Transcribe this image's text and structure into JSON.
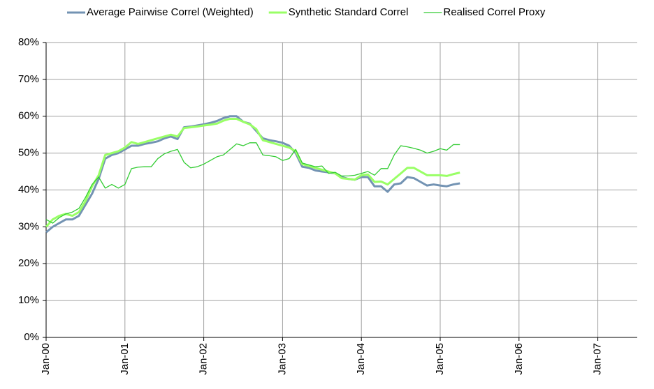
{
  "chart_data": {
    "type": "line",
    "x": [
      "2000-01",
      "2000-02",
      "2000-03",
      "2000-04",
      "2000-05",
      "2000-06",
      "2000-07",
      "2000-08",
      "2000-09",
      "2000-10",
      "2000-11",
      "2000-12",
      "2001-01",
      "2001-02",
      "2001-03",
      "2001-04",
      "2001-05",
      "2001-06",
      "2001-07",
      "2001-08",
      "2001-09",
      "2001-10",
      "2001-11",
      "2001-12",
      "2002-01",
      "2002-02",
      "2002-03",
      "2002-04",
      "2002-05",
      "2002-06",
      "2002-07",
      "2002-08",
      "2002-09",
      "2002-10",
      "2002-11",
      "2002-12",
      "2003-01",
      "2003-02",
      "2003-03",
      "2003-04",
      "2003-05",
      "2003-06",
      "2003-07",
      "2003-08",
      "2003-09",
      "2003-10",
      "2003-11",
      "2003-12",
      "2004-01",
      "2004-02",
      "2004-03",
      "2004-04",
      "2004-05",
      "2004-06",
      "2004-07",
      "2004-08",
      "2004-09",
      "2004-10",
      "2004-11",
      "2004-12",
      "2005-01",
      "2005-02",
      "2005-03",
      "2005-04"
    ],
    "series": [
      {
        "name": "Average Pairwise Correl (Weighted)",
        "color": "#7393b3",
        "width": 3,
        "values": [
          28.5,
          30,
          31,
          32,
          32,
          33,
          36,
          39,
          43,
          48.5,
          49.5,
          50,
          51,
          52,
          52,
          52.5,
          52.8,
          53.2,
          54,
          54.5,
          53.8,
          57,
          57.2,
          57.5,
          57.8,
          58.2,
          58.7,
          59.5,
          60,
          60,
          58.5,
          58,
          56,
          54,
          53.5,
          53.2,
          52.8,
          52,
          50,
          46.3,
          46,
          45.3,
          45,
          44.8,
          44.5,
          43.5,
          43,
          42.8,
          43.5,
          43.5,
          41,
          41,
          39.5,
          41.5,
          41.8,
          43.5,
          43.2,
          42.2,
          41.2,
          41.5,
          41.2,
          41,
          41.5,
          41.8
        ]
      },
      {
        "name": "Synthetic Standard Correl",
        "color": "#99ff66",
        "width": 3,
        "values": [
          30,
          32,
          33,
          33.5,
          33,
          34,
          37,
          41,
          44,
          49.5,
          50,
          50.5,
          51.5,
          53,
          52.5,
          53,
          53.5,
          54,
          54.5,
          55,
          54.5,
          56.8,
          57,
          57.2,
          57.5,
          57.7,
          58,
          58.8,
          59.3,
          59.3,
          58.5,
          57.8,
          56.5,
          53.5,
          53,
          52.5,
          52,
          51.5,
          50.5,
          47,
          46.5,
          46,
          45.5,
          45,
          44.5,
          43.2,
          43,
          42.8,
          44,
          44.2,
          42.2,
          42.3,
          41.5,
          43,
          44.5,
          46,
          46,
          45,
          44,
          44,
          44,
          43.8,
          44.3,
          44.7
        ]
      },
      {
        "name": "Realised Correl Proxy",
        "color": "#33cc33",
        "width": 1.3,
        "values": [
          32,
          31,
          32.5,
          33.5,
          34,
          35,
          38,
          41.5,
          43.5,
          40.5,
          41.5,
          40.5,
          41.5,
          45.8,
          46.2,
          46.3,
          46.3,
          48.5,
          49.8,
          50.5,
          51,
          47.5,
          46,
          46.3,
          47,
          48,
          49,
          49.5,
          51,
          52.5,
          52,
          52.8,
          52.8,
          49.5,
          49.3,
          49,
          48,
          48.5,
          51,
          47.3,
          46.8,
          46.3,
          46.5,
          44.5,
          44.8,
          43.8,
          43.8,
          44,
          44.5,
          45,
          44,
          45.8,
          45.8,
          49.5,
          52,
          51.7,
          51.3,
          50.8,
          50,
          50.5,
          51.2,
          50.8,
          52.3,
          52.3
        ]
      }
    ],
    "xlim": [
      "2000-01",
      "2007-07"
    ],
    "xticks": [
      {
        "value": "2000-01",
        "label": "Jan-00"
      },
      {
        "value": "2001-01",
        "label": "Jan-01"
      },
      {
        "value": "2002-01",
        "label": "Jan-02"
      },
      {
        "value": "2003-01",
        "label": "Jan-03"
      },
      {
        "value": "2004-01",
        "label": "Jan-04"
      },
      {
        "value": "2005-01",
        "label": "Jan-05"
      },
      {
        "value": "2006-01",
        "label": "Jan-06"
      },
      {
        "value": "2007-01",
        "label": "Jan-07"
      }
    ],
    "ylim": [
      0,
      80
    ],
    "yticks": [
      {
        "value": 0,
        "label": "0%"
      },
      {
        "value": 10,
        "label": "10%"
      },
      {
        "value": 20,
        "label": "20%"
      },
      {
        "value": 30,
        "label": "30%"
      },
      {
        "value": 40,
        "label": "40%"
      },
      {
        "value": 50,
        "label": "50%"
      },
      {
        "value": 60,
        "label": "60%"
      },
      {
        "value": 70,
        "label": "70%"
      },
      {
        "value": 80,
        "label": "80%"
      }
    ],
    "grid": true,
    "legend": "top"
  }
}
